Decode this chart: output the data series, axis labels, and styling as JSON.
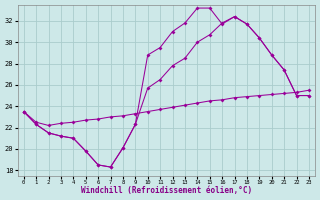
{
  "xlabel": "Windchill (Refroidissement éolien,°C)",
  "bg_color": "#cde8e8",
  "grid_color": "#aacccc",
  "line_color": "#990099",
  "xlim": [
    -0.5,
    23.5
  ],
  "ylim": [
    17.5,
    33.5
  ],
  "xticks": [
    0,
    1,
    2,
    3,
    4,
    5,
    6,
    7,
    8,
    9,
    10,
    11,
    12,
    13,
    14,
    15,
    16,
    17,
    18,
    19,
    20,
    21,
    22,
    23
  ],
  "yticks": [
    18,
    20,
    22,
    24,
    26,
    28,
    30,
    32
  ],
  "line1_x": [
    0,
    1,
    2,
    3,
    4,
    5,
    6,
    7,
    8,
    9,
    10,
    11,
    12,
    13,
    14,
    15,
    16,
    17,
    18,
    19,
    20,
    21,
    22,
    23
  ],
  "line1_y": [
    23.5,
    22.3,
    21.5,
    21.2,
    21.0,
    19.8,
    18.5,
    18.3,
    20.1,
    22.3,
    28.8,
    29.5,
    31.0,
    31.8,
    33.2,
    33.2,
    31.7,
    32.4,
    31.7,
    30.4,
    28.8,
    27.4,
    25.0,
    25.0
  ],
  "line2_x": [
    0,
    1,
    2,
    3,
    4,
    5,
    6,
    7,
    8,
    9,
    10,
    11,
    12,
    13,
    14,
    15,
    16,
    17,
    18,
    19,
    20,
    21,
    22,
    23
  ],
  "line2_y": [
    23.5,
    22.3,
    21.5,
    21.2,
    21.0,
    19.8,
    18.5,
    18.3,
    20.1,
    22.3,
    25.7,
    26.5,
    27.8,
    28.5,
    30.0,
    30.7,
    31.8,
    32.4,
    31.7,
    30.4,
    28.8,
    27.4,
    25.0,
    25.0
  ],
  "line3_x": [
    0,
    1,
    2,
    3,
    4,
    5,
    6,
    7,
    8,
    9,
    10,
    11,
    12,
    13,
    14,
    15,
    16,
    17,
    18,
    19,
    20,
    21,
    22,
    23
  ],
  "line3_y": [
    23.5,
    22.5,
    22.2,
    22.4,
    22.5,
    22.7,
    22.8,
    23.0,
    23.1,
    23.3,
    23.5,
    23.7,
    23.9,
    24.1,
    24.3,
    24.5,
    24.6,
    24.8,
    24.9,
    25.0,
    25.1,
    25.2,
    25.3,
    25.5
  ]
}
